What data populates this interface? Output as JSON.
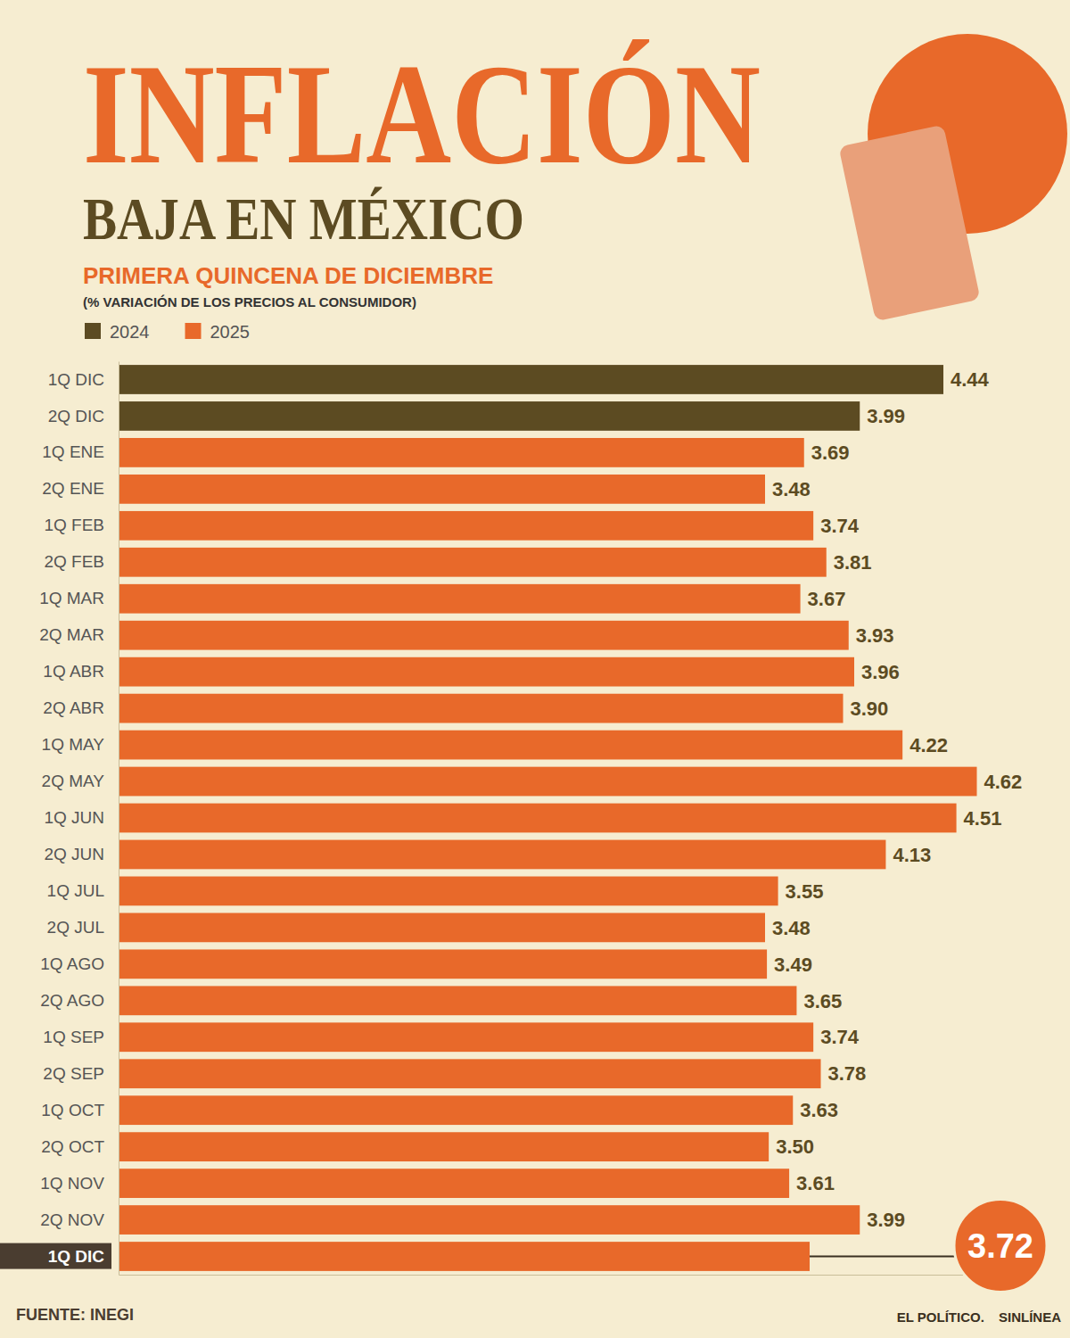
{
  "header": {
    "title": "INFLACIÓN",
    "subtitle": "BAJA EN MÉXICO"
  },
  "footer": {
    "source": "FUENTE: INEGI",
    "logos": [
      "EL POLÍTICO.",
      "SINLÍNEA"
    ]
  },
  "chart_data": {
    "type": "bar",
    "orientation": "horizontal",
    "title": "PRIMERA QUINCENA DE DICIEMBRE",
    "subtitle": "(% VARIACIÓN DE LOS PRECIOS AL CONSUMIDOR)",
    "categories": [
      "1Q DIC",
      "2Q DIC",
      "1Q ENE",
      "2Q ENE",
      "1Q FEB",
      "2Q FEB",
      "1Q MAR",
      "2Q MAR",
      "1Q ABR",
      "2Q ABR",
      "1Q MAY",
      "2Q MAY",
      "1Q JUN",
      "2Q JUN",
      "1Q JUL",
      "2Q JUL",
      "1Q AGO",
      "2Q AGO",
      "1Q SEP",
      "2Q SEP",
      "1Q OCT",
      "2Q OCT",
      "1Q NOV",
      "2Q NOV",
      "1Q DIC"
    ],
    "series": [
      {
        "name": "2024",
        "color": "#5c4b22",
        "values": [
          4.44,
          3.99,
          null,
          null,
          null,
          null,
          null,
          null,
          null,
          null,
          null,
          null,
          null,
          null,
          null,
          null,
          null,
          null,
          null,
          null,
          null,
          null,
          null,
          null,
          null
        ],
        "value_labels": [
          "4.44",
          "3.99",
          null,
          null,
          null,
          null,
          null,
          null,
          null,
          null,
          null,
          null,
          null,
          null,
          null,
          null,
          null,
          null,
          null,
          null,
          null,
          null,
          null,
          null,
          null
        ]
      },
      {
        "name": "2025",
        "color": "#e8692a",
        "values": [
          null,
          null,
          3.69,
          3.48,
          3.74,
          3.81,
          3.67,
          3.93,
          3.96,
          3.9,
          4.22,
          4.62,
          4.51,
          4.13,
          3.55,
          3.48,
          3.49,
          3.65,
          3.74,
          3.78,
          3.63,
          3.5,
          3.61,
          3.99,
          3.72
        ],
        "value_labels": [
          null,
          null,
          "3.69",
          "3.48",
          "3.74",
          "3.81",
          "3.67",
          "3.93",
          "3.96",
          "3.90",
          "4.22",
          "4.62",
          "4.51",
          "4.13",
          "3.55",
          "3.48",
          "3.49",
          "3.65",
          "3.74",
          "3.78",
          "3.63",
          "3.50",
          "3.61",
          "3.99",
          "3.72"
        ]
      }
    ],
    "xlim": [
      0,
      4.8
    ],
    "xticks": [],
    "data_labels": true,
    "tick_labels": "y",
    "legend": "top-left",
    "grid": false
  }
}
